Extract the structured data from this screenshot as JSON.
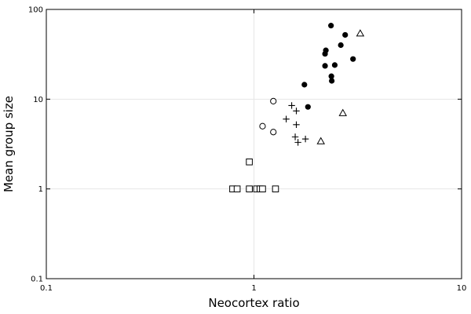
{
  "chart_data": {
    "type": "scatter",
    "title": "",
    "xlabel": "Neocortex ratio",
    "ylabel": "Mean group size",
    "xscale": "log",
    "yscale": "log",
    "xlim": [
      0.1,
      10
    ],
    "ylim": [
      0.1,
      100
    ],
    "grid": true,
    "legend": "none",
    "x_ticks": [
      {
        "value": 0.1,
        "label": "0.1"
      },
      {
        "value": 1,
        "label": "1"
      },
      {
        "value": 10,
        "label": "10"
      }
    ],
    "y_ticks": [
      {
        "value": 0.1,
        "label": "0.1"
      },
      {
        "value": 1,
        "label": "1"
      },
      {
        "value": 10,
        "label": "10"
      },
      {
        "value": 100,
        "label": "100"
      }
    ],
    "series": [
      {
        "marker": "filled-circle",
        "color": "#000000",
        "points": [
          [
            2.35,
            66
          ],
          [
            2.75,
            52
          ],
          [
            3.0,
            28
          ],
          [
            2.62,
            40
          ],
          [
            2.22,
            35
          ],
          [
            2.2,
            32
          ],
          [
            2.45,
            24
          ],
          [
            2.2,
            23.5
          ],
          [
            2.36,
            18
          ],
          [
            2.37,
            16
          ],
          [
            1.75,
            14.5
          ],
          [
            1.82,
            8.2
          ]
        ]
      },
      {
        "marker": "open-circle",
        "color": "#000000",
        "points": [
          [
            1.24,
            9.5
          ],
          [
            1.1,
            5.0
          ],
          [
            1.24,
            4.3
          ]
        ]
      },
      {
        "marker": "plus",
        "color": "#000000",
        "points": [
          [
            1.52,
            8.5
          ],
          [
            1.6,
            7.4
          ],
          [
            1.43,
            6.0
          ],
          [
            1.6,
            5.2
          ],
          [
            1.58,
            3.8
          ],
          [
            1.77,
            3.6
          ],
          [
            1.63,
            3.3
          ]
        ]
      },
      {
        "marker": "open-triangle",
        "color": "#000000",
        "points": [
          [
            3.25,
            54
          ],
          [
            2.68,
            7.0
          ],
          [
            2.1,
            3.4
          ]
        ]
      },
      {
        "marker": "open-square",
        "color": "#000000",
        "points": [
          [
            0.95,
            2.0
          ],
          [
            0.79,
            1.0
          ],
          [
            0.83,
            1.0
          ],
          [
            0.95,
            1.0
          ],
          [
            1.03,
            1.0
          ],
          [
            1.07,
            1.0
          ],
          [
            1.1,
            1.0
          ],
          [
            1.27,
            1.0
          ]
        ]
      }
    ]
  }
}
